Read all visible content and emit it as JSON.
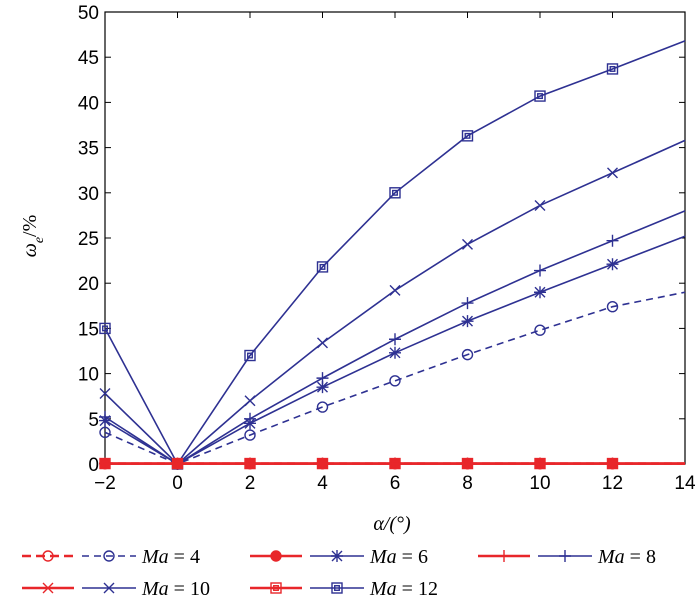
{
  "chart_data": {
    "type": "line",
    "xlabel": "α/(°)",
    "ylabel_main": "ω",
    "ylabel_sub": "e",
    "ylabel_suffix": "/%",
    "xlim": [
      -2,
      14
    ],
    "ylim": [
      0,
      50
    ],
    "xticks": [
      -2,
      0,
      2,
      4,
      6,
      8,
      10,
      12,
      14
    ],
    "yticks": [
      0,
      5,
      10,
      15,
      20,
      25,
      30,
      35,
      40,
      45,
      50
    ],
    "grid": false,
    "legend_position": "bottom",
    "x": [
      -2,
      0,
      2,
      4,
      6,
      8,
      10,
      12,
      14
    ],
    "series": [
      {
        "name": "Ma = 4",
        "marker": "circle",
        "dashed": true,
        "values": [
          3.5,
          0,
          3.2,
          6.3,
          9.2,
          12.1,
          14.8,
          17.4,
          19.0
        ],
        "red_marker": "circle",
        "red_dashed": true,
        "red_values": [
          0.05,
          0.05,
          0.05,
          0.05,
          0.05,
          0.05,
          0.05,
          0.05,
          0.05
        ]
      },
      {
        "name": "Ma = 6",
        "marker": "asterisk",
        "dashed": false,
        "values": [
          4.8,
          0,
          4.5,
          8.5,
          12.3,
          15.8,
          19.0,
          22.1,
          25.2
        ],
        "red_marker": "filled-circle",
        "red_dashed": false,
        "red_values": [
          0.05,
          0.05,
          0.05,
          0.05,
          0.05,
          0.05,
          0.05,
          0.05,
          0.05
        ]
      },
      {
        "name": "Ma = 8",
        "marker": "plus",
        "dashed": false,
        "values": [
          5.2,
          0,
          5.0,
          9.5,
          13.8,
          17.8,
          21.4,
          24.7,
          28.0
        ],
        "red_marker": "plus",
        "red_dashed": false,
        "red_values": [
          0.05,
          0.05,
          0.05,
          0.05,
          0.05,
          0.05,
          0.05,
          0.05,
          0.05
        ]
      },
      {
        "name": "Ma = 10",
        "marker": "x",
        "dashed": false,
        "values": [
          7.8,
          0,
          7.0,
          13.4,
          19.2,
          24.3,
          28.6,
          32.2,
          35.8
        ],
        "red_marker": "x",
        "red_dashed": false,
        "red_values": [
          0.05,
          0.05,
          0.05,
          0.05,
          0.05,
          0.05,
          0.05,
          0.05,
          0.05
        ]
      },
      {
        "name": "Ma = 12",
        "marker": "square",
        "dashed": false,
        "values": [
          15.0,
          0,
          12.0,
          21.8,
          30.0,
          36.3,
          40.7,
          43.7,
          46.8
        ],
        "red_marker": "square",
        "red_dashed": false,
        "red_values": [
          0.05,
          0.05,
          0.05,
          0.05,
          0.05,
          0.05,
          0.05,
          0.05,
          0.05
        ]
      }
    ],
    "colors": {
      "blue": "#2e3192",
      "red": "#e8262a"
    },
    "legend_rows": [
      [
        "Ma = 4",
        "Ma = 6",
        "Ma = 8"
      ],
      [
        "Ma = 10",
        "Ma = 12"
      ]
    ]
  }
}
